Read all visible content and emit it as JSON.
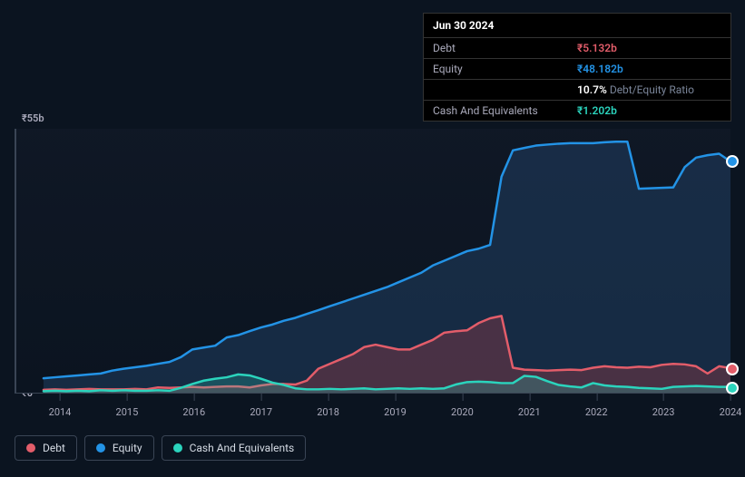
{
  "background_color": "#0b1420",
  "tooltip": {
    "date": "Jun 30 2024",
    "rows": [
      {
        "label": "Debt",
        "value": "₹5.132b",
        "color": "#e35d6a"
      },
      {
        "label": "Equity",
        "value": "₹48.182b",
        "color": "#2393e6"
      },
      {
        "label": "",
        "value": "10.7%",
        "sublabel": "Debt/Equity Ratio",
        "color": "#ffffff"
      },
      {
        "label": "Cash And Equivalents",
        "value": "₹1.202b",
        "color": "#2bd4bd"
      }
    ]
  },
  "chart": {
    "type": "area",
    "y_top_label": "₹55b",
    "y_bottom_label": "₹0",
    "ylim": [
      0,
      55
    ],
    "x_years": [
      "2014",
      "2015",
      "2016",
      "2017",
      "2018",
      "2019",
      "2020",
      "2021",
      "2022",
      "2023",
      "2024"
    ],
    "series": [
      {
        "name": "Equity",
        "color": "#2393e6",
        "fill": "rgba(35,71,110,0.45)",
        "line_width": 2.5,
        "end_dot_outer": "#ffffff",
        "values": [
          3,
          3.2,
          3.4,
          3.6,
          3.8,
          4,
          4.6,
          5,
          5.3,
          5.6,
          6,
          6.4,
          7.4,
          9,
          9.4,
          9.8,
          11.5,
          12,
          12.8,
          13.6,
          14.2,
          15,
          15.6,
          16.4,
          17.2,
          18,
          18.8,
          19.6,
          20.4,
          21.2,
          22,
          23,
          24,
          25,
          26.5,
          27.5,
          28.5,
          29.5,
          30,
          30.8,
          45,
          50.5,
          51,
          51.5,
          51.7,
          51.9,
          52,
          52,
          52,
          52.2,
          52.3,
          52.3,
          42.5,
          42.6,
          42.7,
          42.8,
          47,
          49,
          49.5,
          49.8,
          48.2
        ]
      },
      {
        "name": "Debt",
        "color": "#e35d6a",
        "fill": "rgba(168,60,72,0.35)",
        "line_width": 2.5,
        "end_dot_outer": "#ffffff",
        "values": [
          0.6,
          0.7,
          0.6,
          0.7,
          0.8,
          0.7,
          0.7,
          0.7,
          0.8,
          0.7,
          1.1,
          1.0,
          1.1,
          1.2,
          1.1,
          1.2,
          1.3,
          1.3,
          1.1,
          1.5,
          1.8,
          1.8,
          1.7,
          2.5,
          5,
          6,
          7,
          8,
          9.5,
          10,
          9.5,
          9,
          9,
          10,
          11,
          12.5,
          12.8,
          13,
          14.5,
          15.5,
          16,
          5.2,
          4.8,
          4.7,
          4.6,
          4.7,
          4.8,
          4.7,
          5.2,
          5.5,
          5.3,
          5.2,
          5.4,
          5.3,
          5.8,
          6,
          5.9,
          5.5,
          4.0,
          5.5,
          5.1
        ]
      },
      {
        "name": "Cash And Equivalents",
        "color": "#2bd4bd",
        "fill": "rgba(43,212,189,0.22)",
        "line_width": 2.5,
        "end_dot_outer": "#ffffff",
        "values": [
          0.3,
          0.4,
          0.3,
          0.4,
          0.3,
          0.5,
          0.4,
          0.5,
          0.4,
          0.4,
          0.5,
          0.4,
          1.0,
          1.8,
          2.5,
          2.9,
          3.2,
          3.8,
          3.6,
          2.9,
          2.1,
          1.6,
          0.9,
          0.7,
          0.7,
          0.8,
          0.7,
          0.8,
          0.9,
          0.7,
          0.8,
          0.9,
          0.8,
          0.9,
          0.8,
          0.9,
          1.7,
          2.2,
          2.3,
          2.2,
          2.0,
          2.0,
          3.5,
          3.3,
          2.4,
          1.6,
          1.3,
          1.1,
          2.0,
          1.5,
          1.3,
          1.2,
          1.0,
          0.9,
          0.8,
          1.2,
          1.3,
          1.4,
          1.3,
          1.2,
          1.2
        ]
      }
    ]
  },
  "legend": {
    "items": [
      {
        "label": "Debt",
        "color": "#e35d6a"
      },
      {
        "label": "Equity",
        "color": "#2393e6"
      },
      {
        "label": "Cash And Equivalents",
        "color": "#2bd4bd"
      }
    ]
  }
}
